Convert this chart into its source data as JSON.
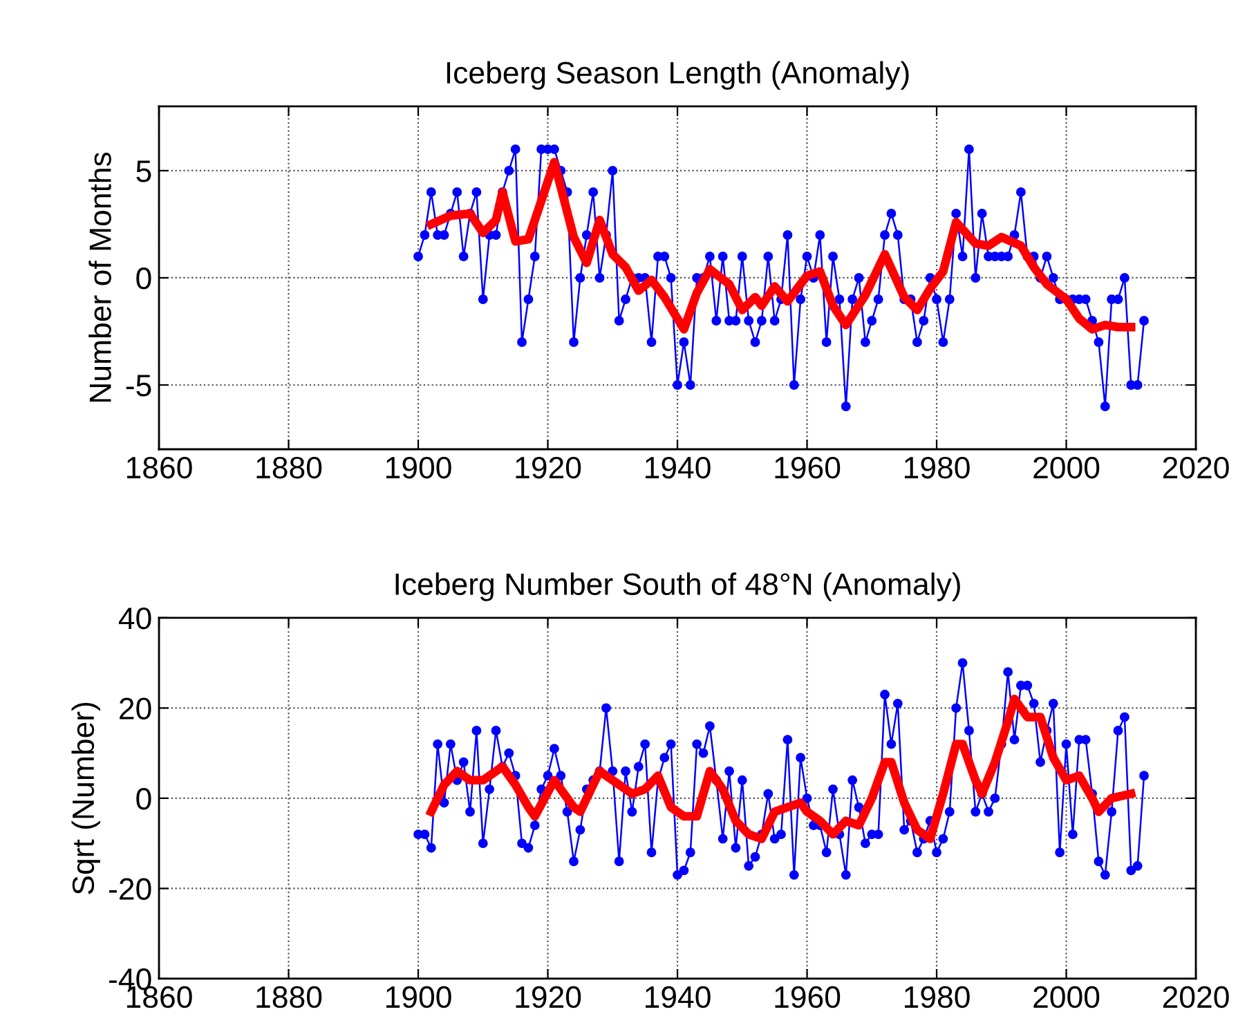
{
  "chart_data": [
    {
      "type": "line",
      "title": "Iceberg Season Length (Anomaly)",
      "ylabel": "Number of Months",
      "xlim": [
        1860,
        2020
      ],
      "xticks": [
        1860,
        1880,
        1900,
        1920,
        1940,
        1960,
        1980,
        2000,
        2020
      ],
      "ylim": [
        -8,
        8
      ],
      "yticks": [
        -5,
        0,
        5
      ],
      "grid": true,
      "legend": false,
      "series": [
        {
          "color": "#0000ff",
          "marker": "circle",
          "x": [
            1900,
            1901,
            1902,
            1903,
            1904,
            1905,
            1906,
            1907,
            1908,
            1909,
            1910,
            1911,
            1912,
            1913,
            1914,
            1915,
            1916,
            1917,
            1918,
            1919,
            1920,
            1921,
            1922,
            1923,
            1924,
            1925,
            1926,
            1927,
            1928,
            1929,
            1930,
            1931,
            1932,
            1933,
            1934,
            1935,
            1936,
            1937,
            1938,
            1939,
            1940,
            1941,
            1942,
            1943,
            1944,
            1945,
            1946,
            1947,
            1948,
            1949,
            1950,
            1951,
            1952,
            1953,
            1954,
            1955,
            1956,
            1957,
            1958,
            1959,
            1960,
            1961,
            1962,
            1963,
            1964,
            1965,
            1966,
            1967,
            1968,
            1969,
            1970,
            1971,
            1972,
            1973,
            1974,
            1975,
            1976,
            1977,
            1978,
            1979,
            1980,
            1981,
            1982,
            1983,
            1984,
            1985,
            1986,
            1987,
            1988,
            1989,
            1990,
            1991,
            1992,
            1993,
            1994,
            1995,
            1996,
            1997,
            1998,
            1999,
            2000,
            2001,
            2002,
            2003,
            2004,
            2005,
            2006,
            2007,
            2008,
            2009,
            2010,
            2011,
            2012
          ],
          "values": [
            1,
            2,
            4,
            2,
            2,
            3,
            4,
            1,
            3,
            4,
            -1,
            2,
            2,
            4,
            5,
            6,
            -3,
            -1,
            1,
            6,
            6,
            6,
            5,
            4,
            -3,
            0,
            2,
            4,
            0,
            2,
            5,
            -2,
            -1,
            0,
            0,
            0,
            -3,
            1,
            1,
            0,
            -5,
            -3,
            -5,
            0,
            0,
            1,
            -2,
            1,
            -2,
            -2,
            1,
            -2,
            -3,
            -2,
            1,
            -2,
            -1,
            2,
            -5,
            -1,
            1,
            0,
            2,
            -3,
            1,
            -1,
            -6,
            -1,
            0,
            -3,
            -2,
            -1,
            2,
            3,
            2,
            -1,
            -1,
            -3,
            -2,
            0,
            -1,
            -3,
            -1,
            3,
            1,
            6,
            0,
            3,
            1,
            1,
            1,
            1,
            2,
            4,
            1,
            1,
            0,
            1,
            0,
            -1,
            -1,
            -1,
            -1,
            -1,
            -2,
            -3,
            -6,
            -1,
            -1,
            0,
            -5,
            -5,
            -2
          ]
        },
        {
          "color": "#ff0000",
          "marker": "none",
          "x": [
            1902,
            1905,
            1908,
            1910,
            1912,
            1913,
            1915,
            1917,
            1921,
            1924,
            1926,
            1928,
            1930,
            1932,
            1934,
            1936,
            1938,
            1941,
            1943,
            1945,
            1948,
            1950,
            1952,
            1953,
            1955,
            1957,
            1960,
            1962,
            1964,
            1966,
            1969,
            1972,
            1975,
            1977,
            1979,
            1981,
            1983,
            1986,
            1988,
            1990,
            1993,
            1995,
            1997,
            2000,
            2002,
            2004,
            2006,
            2008,
            2010
          ],
          "values": [
            2.5,
            2.9,
            3.0,
            2.1,
            2.7,
            4.0,
            1.7,
            1.8,
            5.4,
            1.9,
            0.7,
            2.7,
            1.1,
            0.5,
            -0.6,
            -0.1,
            -0.9,
            -2.4,
            -0.7,
            0.4,
            -0.3,
            -1.5,
            -0.9,
            -1.3,
            -0.4,
            -1.1,
            0.1,
            0.3,
            -1.3,
            -2.2,
            -0.8,
            1.1,
            -0.9,
            -1.5,
            -0.5,
            0.3,
            2.6,
            1.6,
            1.5,
            1.9,
            1.5,
            0.5,
            -0.3,
            -1.0,
            -1.9,
            -2.4,
            -2.2,
            -2.3,
            -2.3
          ]
        }
      ]
    },
    {
      "type": "line",
      "title": "Iceberg Number South of 48°N (Anomaly)",
      "ylabel": "Sqrt (Number)",
      "xlim": [
        1860,
        2020
      ],
      "xticks": [
        1860,
        1880,
        1900,
        1920,
        1940,
        1960,
        1980,
        2000,
        2020
      ],
      "ylim": [
        -40,
        40
      ],
      "yticks": [
        -40,
        -20,
        0,
        20,
        40
      ],
      "grid": true,
      "legend": false,
      "series": [
        {
          "color": "#0000ff",
          "marker": "circle",
          "x": [
            1900,
            1901,
            1902,
            1903,
            1904,
            1905,
            1906,
            1907,
            1908,
            1909,
            1910,
            1911,
            1912,
            1913,
            1914,
            1915,
            1916,
            1917,
            1918,
            1919,
            1920,
            1921,
            1922,
            1923,
            1924,
            1925,
            1926,
            1927,
            1928,
            1929,
            1930,
            1931,
            1932,
            1933,
            1934,
            1935,
            1936,
            1937,
            1938,
            1939,
            1940,
            1941,
            1942,
            1943,
            1944,
            1945,
            1946,
            1947,
            1948,
            1949,
            1950,
            1951,
            1952,
            1953,
            1954,
            1955,
            1956,
            1957,
            1958,
            1959,
            1960,
            1961,
            1962,
            1963,
            1964,
            1965,
            1966,
            1967,
            1968,
            1969,
            1970,
            1971,
            1972,
            1973,
            1974,
            1975,
            1976,
            1977,
            1978,
            1979,
            1980,
            1981,
            1982,
            1983,
            1984,
            1985,
            1986,
            1987,
            1988,
            1989,
            1990,
            1991,
            1992,
            1993,
            1994,
            1995,
            1996,
            1997,
            1998,
            1999,
            2000,
            2001,
            2002,
            2003,
            2004,
            2005,
            2006,
            2007,
            2008,
            2009,
            2010,
            2011,
            2012
          ],
          "values": [
            -8,
            -8,
            -11,
            12,
            -1,
            12,
            4,
            8,
            -3,
            15,
            -10,
            2,
            15,
            7,
            10,
            5,
            -10,
            -11,
            -6,
            2,
            5,
            11,
            5,
            -3,
            -14,
            -7,
            2,
            4,
            6,
            20,
            6,
            -14,
            6,
            -3,
            7,
            12,
            -12,
            4,
            9,
            12,
            -17,
            -16,
            -12,
            12,
            10,
            16,
            4,
            -9,
            6,
            -11,
            4,
            -15,
            -13,
            -8,
            1,
            -9,
            -8,
            13,
            -17,
            9,
            0,
            -6,
            -6,
            -12,
            2,
            -8,
            -17,
            4,
            -2,
            -10,
            -8,
            -8,
            23,
            12,
            21,
            -7,
            -5,
            -12,
            -9,
            -5,
            -12,
            -9,
            -3,
            20,
            30,
            15,
            -3,
            1,
            -3,
            0,
            12,
            28,
            13,
            25,
            25,
            21,
            8,
            15,
            21,
            -12,
            12,
            -8,
            13,
            13,
            1,
            -14,
            -17,
            -3,
            15,
            18,
            -16,
            -15,
            5
          ]
        },
        {
          "color": "#ff0000",
          "marker": "none",
          "x": [
            1902,
            1904,
            1906,
            1908,
            1910,
            1912,
            1913,
            1915,
            1917,
            1918,
            1921,
            1924,
            1925,
            1928,
            1931,
            1933,
            1935,
            1937,
            1939,
            1941,
            1943,
            1945,
            1947,
            1949,
            1951,
            1953,
            1955,
            1957,
            1959,
            1960,
            1962,
            1964,
            1966,
            1968,
            1970,
            1972,
            1973,
            1975,
            1977,
            1979,
            1981,
            1983,
            1984,
            1986,
            1987,
            1989,
            1991,
            1992,
            1994,
            1996,
            1998,
            2000,
            2002,
            2004,
            2005,
            2007,
            2010
          ],
          "values": [
            -3,
            3,
            6,
            4,
            4,
            6,
            7,
            3,
            -2,
            -4,
            4,
            -2,
            -3,
            6,
            3,
            1,
            2,
            5,
            -2,
            -4,
            -4,
            6,
            2,
            -5,
            -8,
            -9,
            -3,
            -2,
            -1,
            -3,
            -5,
            -8,
            -5,
            -6,
            0,
            8,
            8,
            -1,
            -7,
            -9,
            1,
            12,
            12,
            4,
            1,
            8,
            17,
            22,
            18,
            18,
            9,
            4,
            5,
            0,
            -3,
            0,
            1
          ]
        }
      ]
    }
  ]
}
